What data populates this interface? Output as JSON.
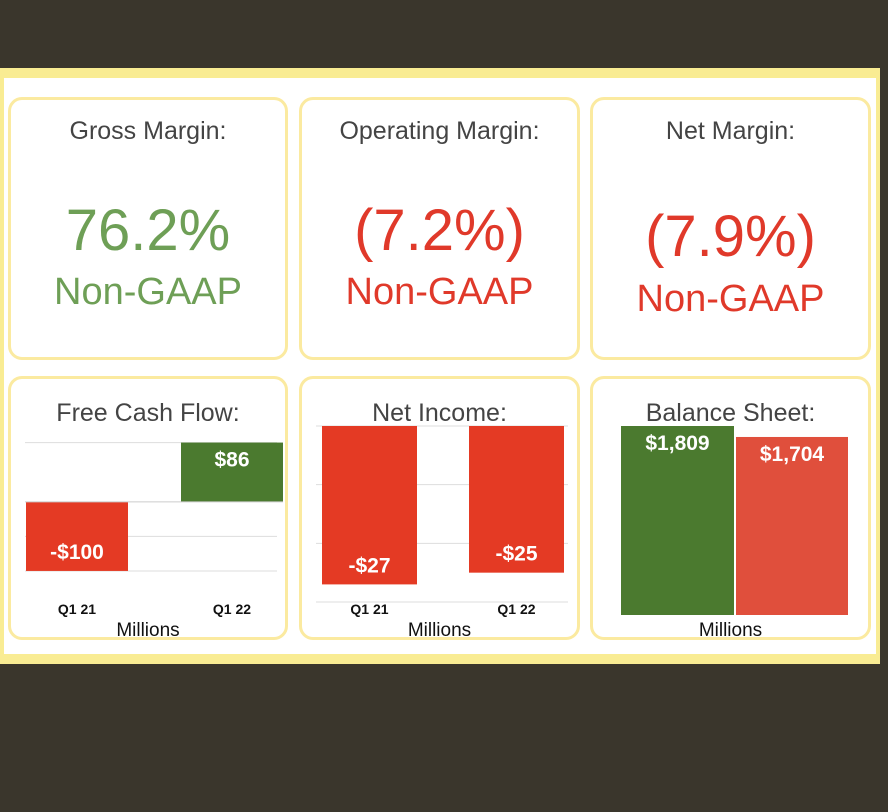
{
  "colors": {
    "green": "#6e9f56",
    "red": "#e0392a",
    "dark_green": "#4b7a2f",
    "bar_red": "#e43a24",
    "bar_red_light": "#e04f3c",
    "border": "#fbeaa0",
    "frame": "#f9ec93",
    "background": "#3a362c"
  },
  "kpis": [
    {
      "title": "Gross Margin:",
      "value": "76.2%",
      "label": "Non-GAAP",
      "color": "green"
    },
    {
      "title": "Operating Margin:",
      "value": "(7.2%)",
      "label": "Non-GAAP",
      "color": "red"
    },
    {
      "title": "Net Margin:",
      "value": "(7.9%)",
      "label": "Non-GAAP",
      "color": "red"
    }
  ],
  "chart_data": [
    {
      "type": "bar",
      "title": "Free Cash Flow:",
      "categories": [
        "Q1 21",
        "Q1 22"
      ],
      "values": [
        -100,
        86
      ],
      "value_labels": [
        "-$100",
        "$86"
      ],
      "xlabel": "Millions",
      "ylim": [
        -145,
        110
      ],
      "grid": true
    },
    {
      "type": "bar",
      "title": "Net Income:",
      "categories": [
        "Q1 21",
        "Q1 22"
      ],
      "values": [
        -27,
        -25
      ],
      "value_labels": [
        "-$27",
        "-$25"
      ],
      "xlabel": "Millions",
      "ylim": [
        -30,
        0
      ],
      "grid": true
    },
    {
      "type": "bar",
      "title": "Balance Sheet:",
      "categories": [
        "",
        ""
      ],
      "values": [
        1809,
        1704
      ],
      "value_labels": [
        "$1,809",
        "$1,704"
      ],
      "xlabel": "Millions",
      "ylim": [
        0,
        1809
      ],
      "grid": false
    }
  ]
}
